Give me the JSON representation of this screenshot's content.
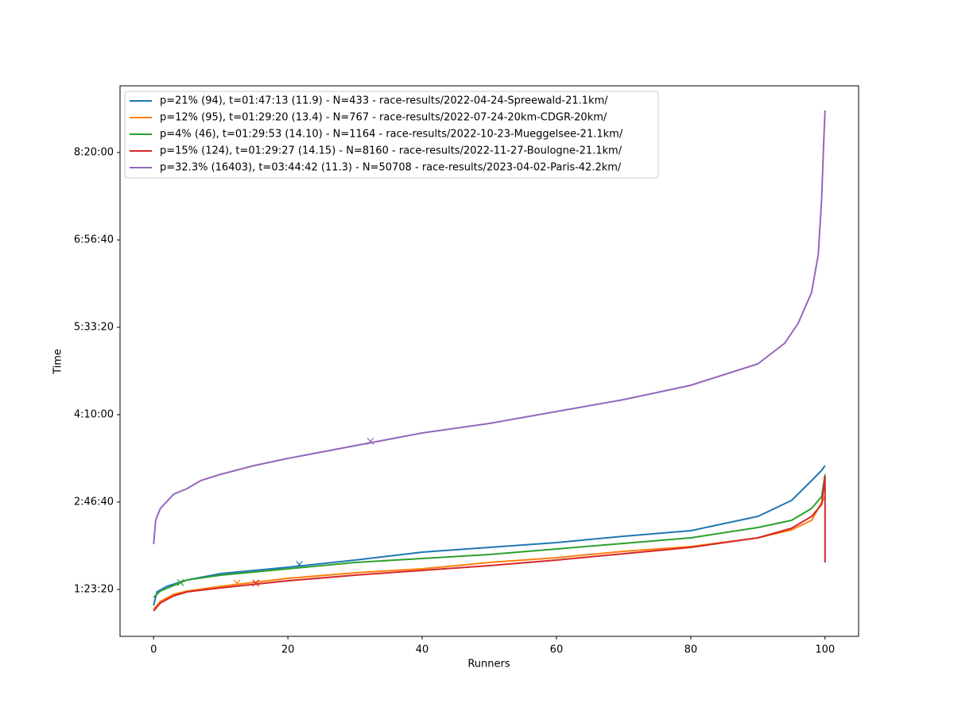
{
  "chart_data": {
    "type": "line",
    "xlabel": "Runners",
    "ylabel": "Time",
    "xlim": [
      -5,
      105
    ],
    "ylim": [
      2318,
      33818
    ],
    "xticks": [
      0,
      20,
      40,
      60,
      80,
      100
    ],
    "yticks": [
      {
        "value": 5000,
        "label": "1:23:20"
      },
      {
        "value": 10000,
        "label": "2:46:40"
      },
      {
        "value": 15000,
        "label": "4:10:00"
      },
      {
        "value": 20000,
        "label": "5:33:20"
      },
      {
        "value": 25000,
        "label": "6:56:40"
      },
      {
        "value": 30000,
        "label": "8:20:00"
      }
    ],
    "legend": "upper left",
    "series": [
      {
        "name": "p=21% (94), t=01:47:13 (11.9) - N=433 - race-results/2022-04-24-Spreewald-21.1km/",
        "color": "#1f77b4",
        "x": [
          0,
          0.5,
          2,
          5,
          10,
          20,
          30,
          40,
          50,
          60,
          70,
          80,
          90,
          95,
          98,
          99.5,
          100
        ],
        "values": [
          4091,
          4864,
          5182,
          5545,
          5909,
          6273,
          6682,
          7136,
          7409,
          7682,
          8045,
          8364,
          9182,
          10091,
          11227,
          11818,
          12091
        ],
        "marker_x": 21.7,
        "marker_y": 6433
      },
      {
        "name": "p=12% (95), t=01:29:20 (13.4) - N=767 - race-results/2022-07-24-20km-CDGR-20km/",
        "color": "#ff7f0e",
        "x": [
          0,
          1,
          3,
          5,
          10,
          20,
          30,
          40,
          50,
          60,
          70,
          80,
          90,
          95,
          98,
          100
        ],
        "values": [
          3864,
          4318,
          4727,
          4909,
          5182,
          5636,
          5955,
          6182,
          6545,
          6818,
          7182,
          7455,
          7955,
          8409,
          8955,
          10318
        ],
        "marker_x": 12.4,
        "marker_y": 5360
      },
      {
        "name": "p=4% (46), t=01:29:53 (14.10) - N=1164 - race-results/2022-10-23-Mueggelsee-21.1km/",
        "color": "#2ca02c",
        "x": [
          0,
          1,
          3,
          5,
          10,
          20,
          30,
          40,
          50,
          60,
          70,
          80,
          90,
          95,
          98,
          99.5,
          100
        ],
        "values": [
          4545,
          4909,
          5227,
          5545,
          5818,
          6182,
          6545,
          6773,
          7000,
          7318,
          7636,
          7955,
          8545,
          8955,
          9636,
          10318,
          11591
        ],
        "marker_x": 4.0,
        "marker_y": 5393
      },
      {
        "name": "p=15% (124), t=01:29:27 (14.15) - N=8160 - race-results/2022-11-27-Boulogne-21.1km/",
        "color": "#d62728",
        "x": [
          0,
          1,
          3,
          5,
          10,
          20,
          30,
          40,
          50,
          60,
          70,
          80,
          90,
          95,
          98,
          99.5,
          100,
          100
        ],
        "values": [
          3773,
          4227,
          4636,
          4864,
          5091,
          5500,
          5818,
          6091,
          6364,
          6682,
          7045,
          7409,
          7955,
          8500,
          9182,
          9864,
          11455,
          6545
        ],
        "marker_x": 15.2,
        "marker_y": 5367
      },
      {
        "name": "p=32.3% (16403), t=03:44:42 (11.3) - N=50708 - race-results/2023-04-02-Paris-42.2km/",
        "color": "#9467bd",
        "x": [
          0,
          0.3,
          1,
          3,
          5,
          7,
          10,
          15,
          20,
          30,
          40,
          50,
          60,
          70,
          80,
          90,
          94,
          96,
          98,
          99,
          99.5,
          99.8,
          100
        ],
        "values": [
          7591,
          8955,
          9636,
          10455,
          10773,
          11227,
          11591,
          12091,
          12500,
          13227,
          13955,
          14500,
          15182,
          15864,
          16682,
          17909,
          19091,
          20227,
          22000,
          24182,
          27364,
          30545,
          32409
        ],
        "marker_x": 32.3,
        "marker_y": 13482
      }
    ]
  }
}
